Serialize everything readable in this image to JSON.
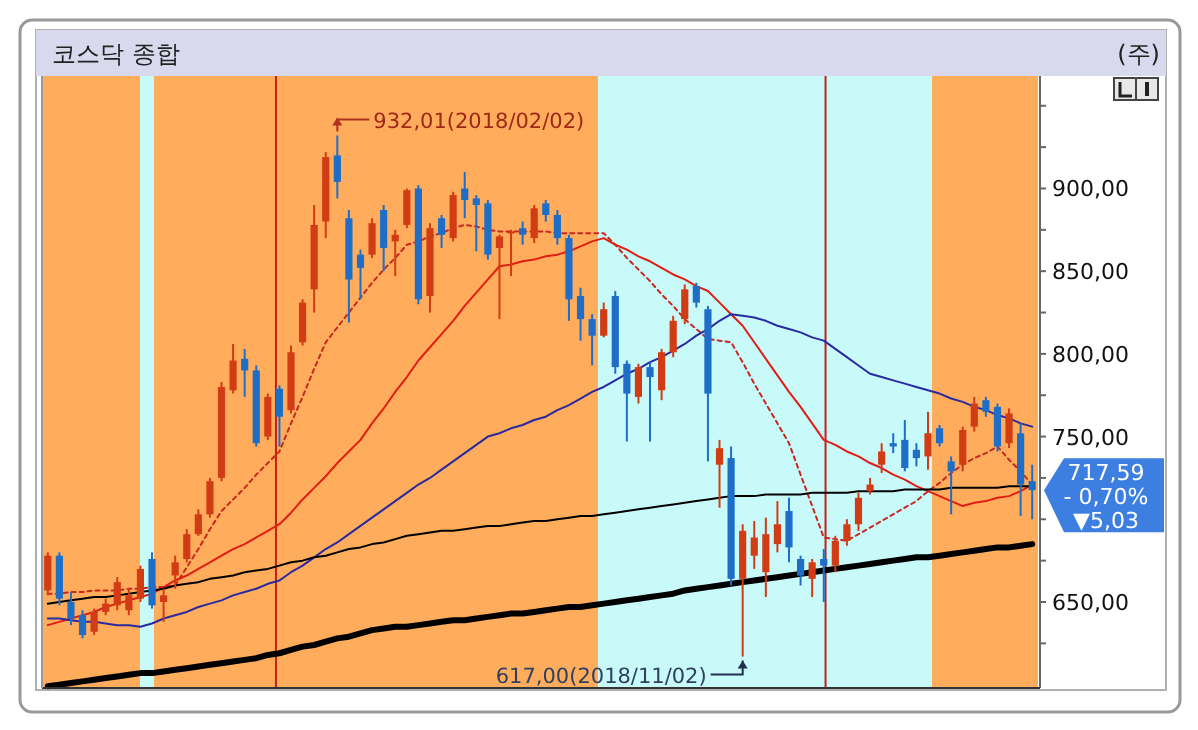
{
  "chart_data": {
    "type": "candlestick",
    "title": "코스닥 종합",
    "categories": [
      null,
      null,
      null,
      null,
      null,
      null,
      null,
      null,
      null,
      null,
      null,
      null,
      null,
      null,
      null,
      null,
      null,
      null,
      null,
      null,
      null,
      null,
      null,
      null,
      null,
      null,
      null,
      null,
      null,
      null,
      null,
      null,
      null,
      null,
      null,
      null,
      null,
      null,
      null,
      null,
      null,
      null,
      null,
      null,
      null,
      null,
      null,
      null,
      null,
      null,
      null,
      null,
      null,
      null,
      null,
      null,
      null,
      null,
      null,
      null,
      null,
      null,
      null,
      null,
      null,
      null,
      null,
      null,
      null,
      null,
      null,
      null,
      null,
      null,
      null,
      null,
      null,
      null,
      null,
      null,
      null,
      null,
      null,
      null,
      null,
      null
    ],
    "ohlc": [
      [
        657,
        680,
        654,
        678
      ],
      [
        678,
        680,
        648,
        652
      ],
      [
        650,
        656,
        636,
        640
      ],
      [
        642,
        645,
        628,
        630
      ],
      [
        632,
        646,
        630,
        644
      ],
      [
        644,
        652,
        642,
        649
      ],
      [
        648,
        665,
        645,
        662
      ],
      [
        645,
        658,
        642,
        654
      ],
      [
        652,
        672,
        650,
        670
      ],
      [
        676,
        680,
        646,
        648
      ],
      [
        650,
        658,
        638,
        654
      ],
      [
        666,
        678,
        658,
        674
      ],
      [
        676,
        694,
        674,
        691
      ],
      [
        691,
        706,
        690,
        703
      ],
      [
        703,
        725,
        701,
        723
      ],
      [
        725,
        783,
        723,
        780
      ],
      [
        778,
        806,
        776,
        796
      ],
      [
        797,
        803,
        774,
        790
      ],
      [
        790,
        793,
        744,
        746
      ],
      [
        750,
        776,
        748,
        774
      ],
      [
        779,
        781,
        744,
        762
      ],
      [
        766,
        805,
        764,
        801
      ],
      [
        807,
        833,
        805,
        831
      ],
      [
        839,
        890,
        825,
        878
      ],
      [
        880,
        922,
        870,
        919
      ],
      [
        920,
        932.01,
        894,
        904
      ],
      [
        882,
        887,
        819,
        845
      ],
      [
        860,
        863,
        833,
        852
      ],
      [
        860,
        882,
        858,
        879
      ],
      [
        887,
        890,
        850,
        864
      ],
      [
        868,
        875,
        847,
        872
      ],
      [
        878,
        900,
        876,
        899
      ],
      [
        900,
        902,
        830,
        833
      ],
      [
        835,
        879,
        825,
        876
      ],
      [
        882,
        884,
        864,
        872
      ],
      [
        870,
        898,
        868,
        896
      ],
      [
        900,
        910,
        882,
        893
      ],
      [
        894,
        896,
        862,
        890
      ],
      [
        891,
        893,
        857,
        860
      ],
      [
        864,
        872,
        821,
        871
      ],
      [
        873,
        875,
        847,
        874
      ],
      [
        876,
        880,
        866,
        872
      ],
      [
        870,
        890,
        867,
        888
      ],
      [
        891,
        893,
        880,
        884
      ],
      [
        884,
        887,
        866,
        870
      ],
      [
        870,
        872,
        820,
        833
      ],
      [
        835,
        840,
        808,
        821
      ],
      [
        821,
        824,
        793,
        811
      ],
      [
        811,
        831,
        810,
        827
      ],
      [
        835,
        838,
        788,
        792
      ],
      [
        794,
        796,
        747,
        776
      ],
      [
        774,
        794,
        770,
        792
      ],
      [
        792,
        795,
        747,
        786
      ],
      [
        778,
        803,
        772,
        801
      ],
      [
        801,
        823,
        798,
        820
      ],
      [
        821,
        842,
        818,
        839
      ],
      [
        841,
        843,
        828,
        831
      ],
      [
        827,
        829,
        735,
        776
      ],
      [
        733,
        748,
        707,
        743
      ],
      [
        737,
        744,
        660,
        664
      ],
      [
        664,
        697,
        617,
        693
      ],
      [
        678,
        699,
        670,
        689
      ],
      [
        668,
        701,
        653,
        691
      ],
      [
        685,
        711,
        680,
        697
      ],
      [
        705,
        713,
        674,
        683
      ],
      [
        676,
        678,
        660,
        666
      ],
      [
        664,
        676,
        653,
        674
      ],
      [
        676,
        682,
        650,
        672
      ],
      [
        672,
        690,
        668,
        687
      ],
      [
        687,
        700,
        684,
        697
      ],
      [
        697,
        716,
        693,
        713
      ],
      [
        717,
        725,
        715,
        721
      ],
      [
        733,
        746,
        728,
        741
      ],
      [
        746,
        752,
        740,
        744
      ],
      [
        748,
        760,
        729,
        731
      ],
      [
        742,
        746,
        732,
        737
      ],
      [
        738,
        765,
        730,
        752
      ],
      [
        755,
        757,
        744,
        746
      ],
      [
        735,
        738,
        703,
        729
      ],
      [
        733,
        756,
        729,
        754
      ],
      [
        756,
        774,
        753,
        770
      ],
      [
        772,
        774,
        762,
        765
      ],
      [
        768,
        770,
        741,
        744
      ],
      [
        746,
        767,
        743,
        764
      ],
      [
        752,
        758,
        702,
        721
      ],
      [
        723,
        733,
        700,
        717.59
      ]
    ],
    "colors": [
      "#d23c14",
      "#1e6ec8",
      "#1e6ec8",
      "#1e6ec8",
      "#d23c14",
      "#d23c14",
      "#d23c14",
      "#d23c14",
      "#d23c14",
      "#1e6ec8",
      "#d23c14",
      "#d23c14",
      "#d23c14",
      "#d23c14",
      "#d23c14",
      "#d23c14",
      "#d23c14",
      "#1e6ec8",
      "#1e6ec8",
      "#d23c14",
      "#1e6ec8",
      "#d23c14",
      "#d23c14",
      "#d23c14",
      "#d23c14",
      "#1e6ec8",
      "#1e6ec8",
      "#1e6ec8",
      "#d23c14",
      "#1e6ec8",
      "#d23c14",
      "#d23c14",
      "#1e6ec8",
      "#d23c14",
      "#1e6ec8",
      "#d23c14",
      "#1e6ec8",
      "#1e6ec8",
      "#1e6ec8",
      "#d23c14",
      "#d23c14",
      "#1e6ec8",
      "#d23c14",
      "#1e6ec8",
      "#1e6ec8",
      "#1e6ec8",
      "#1e6ec8",
      "#1e6ec8",
      "#d23c14",
      "#1e6ec8",
      "#1e6ec8",
      "#d23c14",
      "#1e6ec8",
      "#d23c14",
      "#d23c14",
      "#d23c14",
      "#1e6ec8",
      "#1e6ec8",
      "#d23c14",
      "#1e6ec8",
      "#d23c14",
      "#d23c14",
      "#d23c14",
      "#d23c14",
      "#1e6ec8",
      "#1e6ec8",
      "#d23c14",
      "#1e6ec8",
      "#d23c14",
      "#d23c14",
      "#d23c14",
      "#d23c14",
      "#d23c14",
      "#1e6ec8",
      "#1e6ec8",
      "#1e6ec8",
      "#d23c14",
      "#1e6ec8",
      "#1e6ec8",
      "#d23c14",
      "#d23c14",
      "#1e6ec8",
      "#1e6ec8",
      "#d23c14",
      "#1e6ec8",
      "#1e6ec8"
    ],
    "series": [
      {
        "type": "line",
        "color": "#c8281e",
        "line_style": "dashed",
        "values": [
          655,
          655,
          656,
          656,
          657,
          657,
          657,
          658,
          658,
          659,
          659,
          660,
          671,
          682,
          694,
          705,
          712,
          719,
          727,
          734,
          741,
          758,
          774,
          791,
          807,
          816,
          825,
          834,
          843,
          851,
          858,
          866,
          868,
          871,
          873,
          876,
          878,
          877,
          875,
          874,
          874,
          874,
          874,
          874,
          873,
          873,
          873,
          873,
          873,
          866,
          858,
          851,
          844,
          836,
          829,
          821,
          815,
          809,
          808,
          807,
          795,
          782,
          770,
          758,
          746,
          727,
          708,
          689,
          688,
          687,
          691,
          695,
          699,
          703,
          707,
          711,
          717,
          722,
          728,
          733,
          737,
          740,
          744,
          736,
          729,
          721
        ]
      },
      {
        "type": "line",
        "color": "#e01e14",
        "line_style": "solid",
        "values": [
          636,
          638,
          640,
          642,
          644,
          647,
          649,
          651,
          653,
          655,
          659,
          663,
          666,
          670,
          674,
          678,
          682,
          685,
          689,
          693,
          697,
          704,
          712,
          719,
          726,
          734,
          741,
          748,
          758,
          767,
          777,
          786,
          796,
          804,
          812,
          820,
          829,
          837,
          845,
          853,
          854,
          856,
          857,
          859,
          860,
          862,
          865,
          868,
          870,
          866,
          863,
          859,
          856,
          852,
          848,
          845,
          841,
          838,
          831,
          824,
          817,
          807,
          797,
          787,
          777,
          768,
          758,
          748,
          745,
          741,
          738,
          734,
          731,
          727,
          724,
          720,
          717,
          714,
          711,
          708,
          710,
          711,
          713,
          714,
          717,
          721
        ]
      },
      {
        "type": "line",
        "color": "#2a2aa0",
        "line_style": "solid",
        "values": [
          640,
          640,
          639,
          638,
          638,
          637,
          636,
          636,
          635,
          637,
          640,
          642,
          644,
          647,
          649,
          651,
          654,
          656,
          658,
          661,
          663,
          668,
          672,
          677,
          682,
          686,
          691,
          696,
          701,
          706,
          711,
          716,
          721,
          725,
          730,
          735,
          740,
          745,
          750,
          752,
          755,
          757,
          760,
          762,
          766,
          769,
          773,
          777,
          780,
          784,
          788,
          791,
          795,
          798,
          802,
          806,
          811,
          815,
          820,
          824,
          823,
          822,
          820,
          817,
          815,
          813,
          810,
          808,
          803,
          798,
          793,
          788,
          786,
          784,
          782,
          780,
          778,
          776,
          773,
          771,
          768,
          766,
          763,
          761,
          758,
          756
        ]
      },
      {
        "type": "line",
        "color": "#000000",
        "line_style": "solid",
        "values": [
          649,
          650,
          651,
          652,
          653,
          653,
          654,
          655,
          656,
          657,
          658,
          660,
          661,
          662,
          664,
          665,
          666,
          668,
          669,
          670,
          672,
          674,
          675,
          677,
          678,
          680,
          682,
          683,
          685,
          686,
          688,
          690,
          691,
          692,
          693,
          693,
          694,
          695,
          696,
          696,
          697,
          698,
          699,
          699,
          700,
          701,
          702,
          702,
          703,
          704,
          705,
          706,
          707,
          708,
          709,
          710,
          711,
          712,
          713,
          714,
          714,
          714,
          715,
          715,
          715,
          715,
          716,
          716,
          716,
          716,
          717,
          717,
          717,
          717,
          718,
          718,
          718,
          718,
          719,
          719,
          719,
          719,
          719,
          720,
          720,
          720
        ]
      },
      {
        "type": "line",
        "color": "#000000",
        "line_style": "solid",
        "values": [
          599,
          600,
          601,
          602,
          603,
          604,
          605,
          606,
          607,
          607,
          608,
          609,
          610,
          611,
          612,
          613,
          614,
          615,
          616,
          618,
          619,
          621,
          623,
          624,
          626,
          628,
          629,
          631,
          633,
          634,
          635,
          635,
          636,
          637,
          638,
          639,
          639,
          640,
          641,
          642,
          643,
          643,
          644,
          645,
          646,
          647,
          647,
          648,
          649,
          650,
          651,
          652,
          653,
          654,
          655,
          657,
          658,
          659,
          660,
          661,
          662,
          663,
          664,
          665,
          666,
          667,
          668,
          669,
          670,
          671,
          672,
          673,
          674,
          675,
          676,
          677,
          677,
          678,
          679,
          680,
          681,
          682,
          683,
          683,
          684,
          685
        ]
      }
    ],
    "ylim": [
      598,
      968
    ],
    "yticks": [
      {
        "value": 625,
        "label": null
      },
      {
        "value": 650,
        "label": "650,00"
      },
      {
        "value": 675,
        "label": null
      },
      {
        "value": 700,
        "label": null
      },
      {
        "value": 725,
        "label": null
      },
      {
        "value": 750,
        "label": "750,00"
      },
      {
        "value": 775,
        "label": null
      },
      {
        "value": 800,
        "label": "800,00"
      },
      {
        "value": 825,
        "label": null
      },
      {
        "value": 850,
        "label": "850,00"
      },
      {
        "value": 875,
        "label": null
      },
      {
        "value": 900,
        "label": "900,00"
      },
      {
        "value": 925,
        "label": null
      },
      {
        "value": 950,
        "label": null
      }
    ],
    "tick_labels": "y",
    "annotations": [
      "932,01(2018/02/02)",
      "617,00(2018/11/02)",
      "717,59",
      "- 0,70%",
      "▼5,03",
      "(주)"
    ]
  }
}
